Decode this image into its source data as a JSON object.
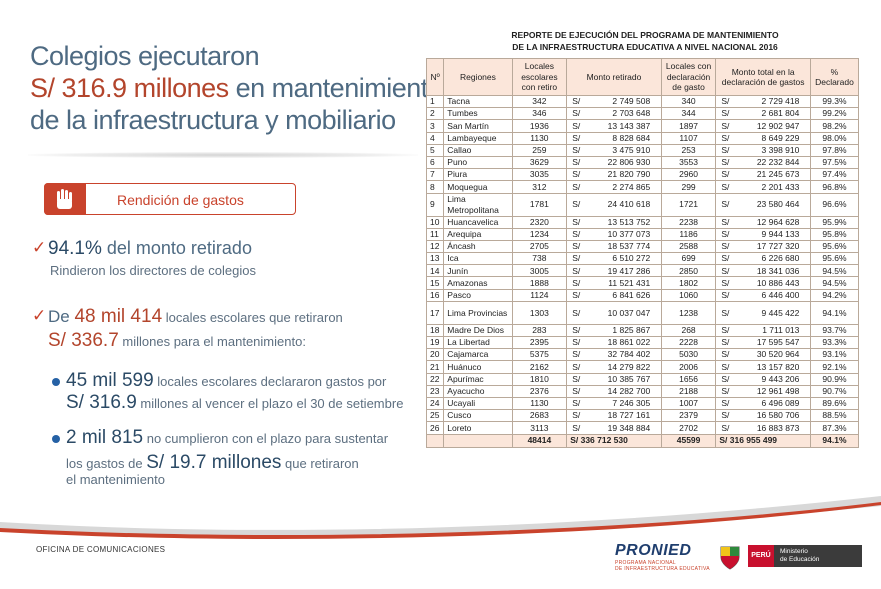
{
  "headline": {
    "line1": "Colegios ejecutaron",
    "line2_amount": "S/ 316.9 millones",
    "line2_rest": " en mantenimiento",
    "line3": "de la infraestructura y mobiliario"
  },
  "badge": {
    "label": "Rendición de gastos",
    "icon": "raised-hand-icon"
  },
  "stats": {
    "check_mark": "✓",
    "pct_declared": "94.1%",
    "pct_declared_text": " del monto retirado",
    "pct_declared_sub": "Rindieron los directores de colegios",
    "locales_prefix": "De ",
    "locales_total": "48 mil 414",
    "locales_text": " locales escolares que retiraron",
    "monto_total": "S/ 336.7",
    "monto_text": " millones para el mantenimiento:",
    "bullet1_count": "45 mil 599",
    "bullet1_text": " locales escolares declararon gastos  por",
    "bullet1_amount": "S/ 316.9",
    "bullet1_text2": " millones al vencer el plazo el 30 de setiembre",
    "bullet2_count": "2 mil 815",
    "bullet2_text": " no cumplieron con el plazo para sustentar",
    "bullet2_text2a": "los gastos de ",
    "bullet2_amount": "S/ 19.7 millones",
    "bullet2_text2b": " que retiraron",
    "bullet2_text3": "el mantenimiento"
  },
  "table": {
    "title_line1": "REPORTE DE EJECUCIÓN DEL PROGRAMA DE MANTENIMIENTO",
    "title_line2": "DE LA INFRAESTRUCTURA EDUCATIVA A NIVEL NACIONAL 2016",
    "headers": [
      "Nº",
      "Regiones",
      "Locales escolares con retiro",
      "Monto retirado",
      "Locales con declaración de gasto",
      "Monto total en la declaración de gastos",
      "% Declarado"
    ],
    "currency": "S/",
    "rows": [
      {
        "n": "1",
        "region": "Tacna",
        "locales": "342",
        "monto": "2 749 508",
        "decl": "340",
        "monto_decl": "2 729 418",
        "pct": "99.3%"
      },
      {
        "n": "2",
        "region": "Tumbes",
        "locales": "346",
        "monto": "2 703 648",
        "decl": "344",
        "monto_decl": "2 681 804",
        "pct": "99.2%"
      },
      {
        "n": "3",
        "region": "San Martín",
        "locales": "1936",
        "monto": "13 143 387",
        "decl": "1897",
        "monto_decl": "12 902 947",
        "pct": "98.2%"
      },
      {
        "n": "4",
        "region": "Lambayeque",
        "locales": "1130",
        "monto": "8 828 684",
        "decl": "1107",
        "monto_decl": "8 649 229",
        "pct": "98.0%"
      },
      {
        "n": "5",
        "region": "Callao",
        "locales": "259",
        "monto": "3 475 910",
        "decl": "253",
        "monto_decl": "3 398 910",
        "pct": "97.8%"
      },
      {
        "n": "6",
        "region": "Puno",
        "locales": "3629",
        "monto": "22 806 930",
        "decl": "3553",
        "monto_decl": "22 232 844",
        "pct": "97.5%"
      },
      {
        "n": "7",
        "region": "Piura",
        "locales": "3035",
        "monto": "21 820 790",
        "decl": "2960",
        "monto_decl": "21 245 673",
        "pct": "97.4%"
      },
      {
        "n": "8",
        "region": "Moquegua",
        "locales": "312",
        "monto": "2 274 865",
        "decl": "299",
        "monto_decl": "2 201 433",
        "pct": "96.8%"
      },
      {
        "n": "9",
        "region": "Lima Metropolitana",
        "locales": "1781",
        "monto": "24 410 618",
        "decl": "1721",
        "monto_decl": "23 580 464",
        "pct": "96.6%",
        "tall": true
      },
      {
        "n": "10",
        "region": "Huancavelica",
        "locales": "2320",
        "monto": "13 513 752",
        "decl": "2238",
        "monto_decl": "12 964 628",
        "pct": "95.9%"
      },
      {
        "n": "11",
        "region": "Arequipa",
        "locales": "1234",
        "monto": "10 377 073",
        "decl": "1186",
        "monto_decl": "9 944 133",
        "pct": "95.8%"
      },
      {
        "n": "12",
        "region": "Áncash",
        "locales": "2705",
        "monto": "18 537 774",
        "decl": "2588",
        "monto_decl": "17 727 320",
        "pct": "95.6%"
      },
      {
        "n": "13",
        "region": "Ica",
        "locales": "738",
        "monto": "6 510 272",
        "decl": "699",
        "monto_decl": "6 226 680",
        "pct": "95.6%"
      },
      {
        "n": "14",
        "region": "Junín",
        "locales": "3005",
        "monto": "19 417 286",
        "decl": "2850",
        "monto_decl": "18 341 036",
        "pct": "94.5%"
      },
      {
        "n": "15",
        "region": "Amazonas",
        "locales": "1888",
        "monto": "11 521 431",
        "decl": "1802",
        "monto_decl": "10 886 443",
        "pct": "94.5%"
      },
      {
        "n": "16",
        "region": "Pasco",
        "locales": "1124",
        "monto": "6 841 626",
        "decl": "1060",
        "monto_decl": "6 446 400",
        "pct": "94.2%"
      },
      {
        "n": "17",
        "region": "Lima Provincias",
        "locales": "1303",
        "monto": "10 037 047",
        "decl": "1238",
        "monto_decl": "9 445 422",
        "pct": "94.1%",
        "tall": true
      },
      {
        "n": "18",
        "region": "Madre De Dios",
        "locales": "283",
        "monto": "1 825 867",
        "decl": "268",
        "monto_decl": "1 711 013",
        "pct": "93.7%"
      },
      {
        "n": "19",
        "region": "La Libertad",
        "locales": "2395",
        "monto": "18 861 022",
        "decl": "2228",
        "monto_decl": "17 595 547",
        "pct": "93.3%"
      },
      {
        "n": "20",
        "region": "Cajamarca",
        "locales": "5375",
        "monto": "32 784 402",
        "decl": "5030",
        "monto_decl": "30 520 964",
        "pct": "93.1%"
      },
      {
        "n": "21",
        "region": "Huánuco",
        "locales": "2162",
        "monto": "14 279 822",
        "decl": "2006",
        "monto_decl": "13 157 820",
        "pct": "92.1%"
      },
      {
        "n": "22",
        "region": "Apurímac",
        "locales": "1810",
        "monto": "10 385 767",
        "decl": "1656",
        "monto_decl": "9 443 206",
        "pct": "90.9%"
      },
      {
        "n": "23",
        "region": "Ayacucho",
        "locales": "2376",
        "monto": "14 282 700",
        "decl": "2188",
        "monto_decl": "12 961 498",
        "pct": "90.7%"
      },
      {
        "n": "24",
        "region": "Ucayali",
        "locales": "1130",
        "monto": "7 246 305",
        "decl": "1007",
        "monto_decl": "6 496 089",
        "pct": "89.6%"
      },
      {
        "n": "25",
        "region": "Cusco",
        "locales": "2683",
        "monto": "18 727 161",
        "decl": "2379",
        "monto_decl": "16 580 706",
        "pct": "88.5%"
      },
      {
        "n": "26",
        "region": "Loreto",
        "locales": "3113",
        "monto": "19 348 884",
        "decl": "2702",
        "monto_decl": "16 883 873",
        "pct": "87.3%"
      }
    ],
    "totals": {
      "locales": "48414",
      "monto": "S/ 336 712 530",
      "decl": "45599",
      "monto_decl": "S/ 316 955 499",
      "pct": "94.1%"
    }
  },
  "footer": {
    "office": "OFICINA DE COMUNICACIONES",
    "pronied_name": "PRONIED",
    "pronied_sub1": "PROGRAMA NACIONAL",
    "pronied_sub2": "DE INFRAESTRUCTURA EDUCATIVA",
    "peru": "PERÚ",
    "ministry_line1": "Ministerio",
    "ministry_line2": "de Educación"
  },
  "colors": {
    "accent_red": "#c9432c",
    "title_blue": "#4e6a82",
    "dark_blue": "#2b4a66",
    "header_fill": "#fbe6da"
  }
}
